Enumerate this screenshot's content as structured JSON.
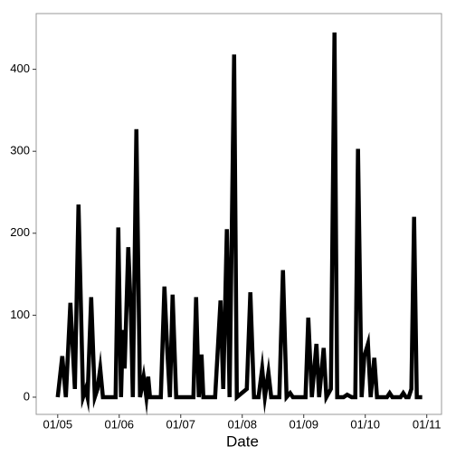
{
  "chart_data": {
    "type": "line",
    "x_label": "Date",
    "color": "#000000",
    "x": [
      0,
      0.074,
      0.132,
      0.206,
      0.279,
      0.338,
      0.412,
      0.456,
      0.485,
      0.544,
      0.603,
      0.647,
      0.691,
      0.735,
      0.941,
      0.985,
      1.029,
      1.059,
      1.088,
      1.147,
      1.191,
      1.221,
      1.279,
      1.338,
      1.397,
      1.441,
      1.471,
      1.5,
      1.676,
      1.735,
      1.779,
      1.824,
      1.868,
      1.926,
      2.206,
      2.25,
      2.294,
      2.338,
      2.368,
      2.559,
      2.647,
      2.691,
      2.75,
      2.794,
      2.868,
      2.912,
      3.074,
      3.132,
      3.191,
      3.265,
      3.324,
      3.368,
      3.426,
      3.471,
      3.603,
      3.662,
      3.721,
      3.779,
      3.824,
      4.029,
      4.074,
      4.132,
      4.206,
      4.25,
      4.324,
      4.368,
      4.441,
      4.5,
      4.544,
      4.647,
      4.706,
      4.779,
      4.838,
      4.882,
      4.941,
      4.985,
      5.044,
      5.088,
      5.147,
      5.191,
      5.353,
      5.397,
      5.441,
      5.574,
      5.618,
      5.662,
      5.706,
      5.75,
      5.794,
      5.838,
      5.926
    ],
    "values": [
      0,
      50,
      0,
      115,
      10,
      235,
      0,
      10,
      0,
      122,
      0,
      10,
      35,
      0,
      0,
      207,
      0,
      82,
      35,
      183,
      100,
      0,
      327,
      0,
      25,
      0,
      25,
      0,
      0,
      135,
      60,
      0,
      125,
      0,
      0,
      122,
      0,
      52,
      0,
      0,
      118,
      10,
      205,
      0,
      418,
      0,
      10,
      128,
      0,
      0,
      35,
      0,
      30,
      0,
      0,
      155,
      0,
      5,
      0,
      0,
      97,
      0,
      65,
      0,
      60,
      0,
      10,
      445,
      0,
      0,
      3,
      0,
      0,
      303,
      0,
      50,
      65,
      0,
      48,
      0,
      0,
      5,
      0,
      0,
      5,
      0,
      0,
      10,
      220,
      0,
      0
    ],
    "xlim": [
      -0.35,
      6.24
    ],
    "ylim": [
      -21,
      468
    ],
    "xticks": [
      {
        "value": 0,
        "label": "01/05"
      },
      {
        "value": 1,
        "label": "01/06"
      },
      {
        "value": 2,
        "label": "01/07"
      },
      {
        "value": 3,
        "label": "01/08"
      },
      {
        "value": 4,
        "label": "01/09"
      },
      {
        "value": 5,
        "label": "01/10"
      },
      {
        "value": 6,
        "label": "01/11"
      }
    ],
    "yticks": [
      0,
      100,
      200,
      300,
      400
    ]
  }
}
